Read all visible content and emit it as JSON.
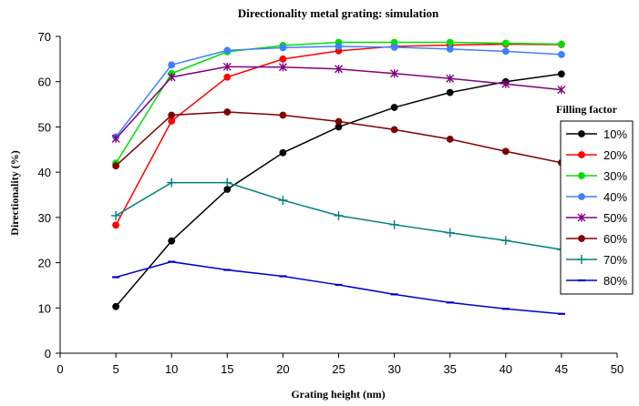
{
  "chart_data": {
    "type": "line",
    "title": "Directionality metal grating: simulation",
    "xlabel": "Grating height (nm)",
    "ylabel": "Directionality  (%)",
    "xlim": [
      0,
      50
    ],
    "ylim": [
      0,
      70
    ],
    "x_ticks": [
      "0",
      "5",
      "10",
      "15",
      "20",
      "25",
      "30",
      "35",
      "40",
      "45",
      "50"
    ],
    "y_ticks": [
      "0",
      "10",
      "20",
      "30",
      "40",
      "50",
      "60",
      "70"
    ],
    "grid": false,
    "legend_title": "Filling factor",
    "legend_position": "right",
    "x": [
      5,
      10,
      15,
      20,
      25,
      30,
      35,
      40,
      45
    ],
    "series": [
      {
        "name": "10%",
        "color": "#000000",
        "marker": "circle",
        "values": [
          10.3,
          24.8,
          36.2,
          44.3,
          50.0,
          54.3,
          57.6,
          60.0,
          61.7
        ]
      },
      {
        "name": "20%",
        "color": "#ff0000",
        "marker": "circle",
        "values": [
          28.3,
          51.3,
          61.0,
          65.0,
          66.8,
          67.8,
          68.1,
          68.3,
          68.2
        ]
      },
      {
        "name": "30%",
        "color": "#00e000",
        "marker": "circle",
        "values": [
          42.0,
          61.8,
          66.6,
          68.0,
          68.7,
          68.7,
          68.7,
          68.5,
          68.3
        ]
      },
      {
        "name": "40%",
        "color": "#3f7fff",
        "marker": "circle",
        "values": [
          47.8,
          63.7,
          66.9,
          67.5,
          67.8,
          67.6,
          67.2,
          66.7,
          66.0
        ]
      },
      {
        "name": "50%",
        "color": "#800080",
        "marker": "asterisk",
        "values": [
          47.4,
          61.0,
          63.3,
          63.2,
          62.8,
          61.8,
          60.7,
          59.5,
          58.2
        ]
      },
      {
        "name": "60%",
        "color": "#800000",
        "marker": "circle",
        "values": [
          41.4,
          52.6,
          53.3,
          52.6,
          51.2,
          49.4,
          47.3,
          44.6,
          42.1
        ]
      },
      {
        "name": "70%",
        "color": "#008080",
        "marker": "plus",
        "values": [
          30.4,
          37.7,
          37.7,
          33.8,
          30.4,
          28.4,
          26.6,
          24.9,
          22.9
        ]
      },
      {
        "name": "80%",
        "color": "#0000cc",
        "marker": "dash",
        "values": [
          16.8,
          20.2,
          18.4,
          17.0,
          15.1,
          13.0,
          11.2,
          9.8,
          8.7
        ]
      }
    ]
  }
}
